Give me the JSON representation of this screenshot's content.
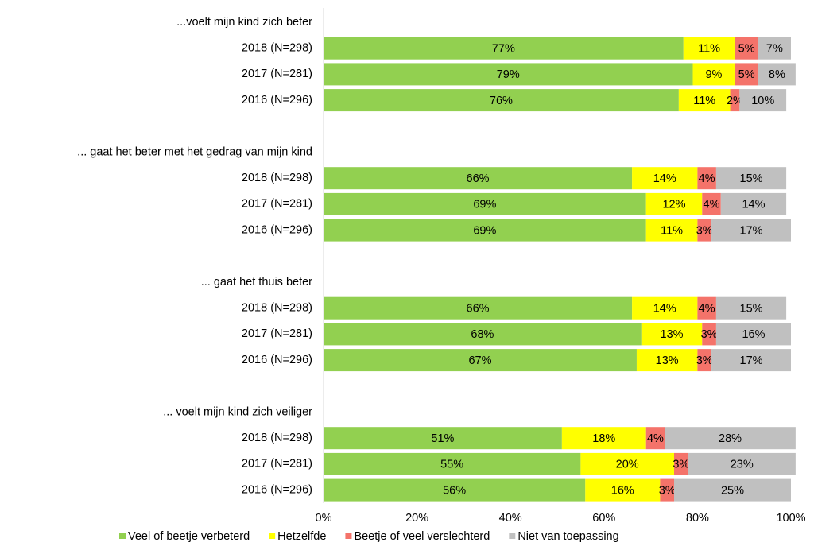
{
  "chart_data": {
    "type": "stacked-bar-horizontal",
    "categories": [
      "...voelt mijn kind zich beter",
      "2018 (N=298)",
      "2017 (N=281)",
      "2016 (N=296)",
      "... gaat het beter met het gedrag van mijn kind",
      "2018 (N=298)",
      "2017 (N=281)",
      "2016 (N=296)",
      "... gaat het thuis beter",
      "2018 (N=298)",
      "2017 (N=281)",
      "2016 (N=296)",
      "... voelt mijn kind zich veiliger",
      "2018 (N=298)",
      "2017 (N=281)",
      "2016 (N=296)"
    ],
    "series": [
      {
        "name": "Veel of beetje verbeterd",
        "color": "#92d050",
        "values": [
          null,
          77,
          79,
          76,
          null,
          66,
          69,
          69,
          null,
          66,
          68,
          67,
          null,
          51,
          55,
          56
        ],
        "value_labels": [
          null,
          "77%",
          "79%",
          "76%",
          null,
          "66%",
          "69%",
          "69%",
          null,
          "66%",
          "68%",
          "67%",
          null,
          "51%",
          "55%",
          "56%"
        ]
      },
      {
        "name": "Hetzelfde",
        "color": "#ffff00",
        "values": [
          null,
          11,
          9,
          11,
          null,
          14,
          12,
          11,
          null,
          14,
          13,
          13,
          null,
          18,
          20,
          16
        ],
        "value_labels": [
          null,
          "11%",
          "9%",
          "11%",
          null,
          "14%",
          "12%",
          "11%",
          null,
          "14%",
          "13%",
          "13%",
          null,
          "18%",
          "20%",
          "16%"
        ]
      },
      {
        "name": "Beetje of veel verslechterd",
        "color": "#f4736a",
        "values": [
          null,
          5,
          5,
          2,
          null,
          4,
          4,
          3,
          null,
          4,
          3,
          3,
          null,
          4,
          3,
          3
        ],
        "value_labels": [
          null,
          "5%",
          "5%",
          "2%",
          null,
          "4%",
          "4%",
          "3%",
          null,
          "4%",
          "3%",
          "3%",
          null,
          "4%",
          "3%",
          "3%"
        ]
      },
      {
        "name": "Niet van toepassing",
        "color": "#c0c0c0",
        "values": [
          null,
          7,
          8,
          10,
          null,
          15,
          14,
          17,
          null,
          15,
          16,
          17,
          null,
          28,
          23,
          25
        ],
        "value_labels": [
          null,
          "7%",
          "8%",
          "10%",
          null,
          "15%",
          "14%",
          "17%",
          null,
          "15%",
          "16%",
          "17%",
          null,
          "28%",
          "23%",
          "25%"
        ]
      }
    ],
    "xlim": [
      0,
      100
    ],
    "xticks": [
      {
        "value": 0,
        "label": "0%"
      },
      {
        "value": 20,
        "label": "20%"
      },
      {
        "value": 40,
        "label": "40%"
      },
      {
        "value": 60,
        "label": "60%"
      },
      {
        "value": 80,
        "label": "80%"
      },
      {
        "value": 100,
        "label": "100%"
      }
    ],
    "grid": false,
    "legend": "bottom"
  }
}
